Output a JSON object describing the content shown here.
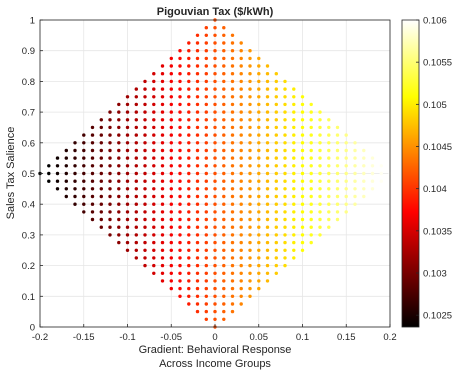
{
  "chart_data": {
    "type": "scatter",
    "title": "Pigouvian Tax ($/kWh)",
    "xlabel": [
      "Gradient: Behavioral Response",
      "Across Income Groups"
    ],
    "ylabel": "Sales Tax Salience",
    "xlim": [
      -0.2,
      0.2
    ],
    "ylim": [
      0,
      1
    ],
    "xticks": [
      "-0.2",
      "-0.15",
      "-0.1",
      "-0.05",
      "0",
      "0.05",
      "0.1",
      "0.15",
      "0.2"
    ],
    "yticks": [
      "0",
      "0.1",
      "0.2",
      "0.3",
      "0.4",
      "0.5",
      "0.6",
      "0.7",
      "0.8",
      "0.9",
      "1"
    ],
    "grid": true,
    "point_grid": {
      "x_step": 0.01,
      "y_step": 0.025,
      "region": "|x| / 0.2 + |y - 0.5| / 0.5 <= 1"
    },
    "color_model": "tax = 0.10415 + 0.0095 * x",
    "colorbar": {
      "colormap": "hot",
      "range": [
        0.10236,
        0.106
      ],
      "ticks": [
        "0.1025",
        "0.103",
        "0.1035",
        "0.104",
        "0.1045",
        "0.105",
        "0.1055",
        "0.106"
      ],
      "tick_values": [
        0.1025,
        0.103,
        0.1035,
        0.104,
        0.1045,
        0.105,
        0.1055,
        0.106
      ]
    }
  }
}
